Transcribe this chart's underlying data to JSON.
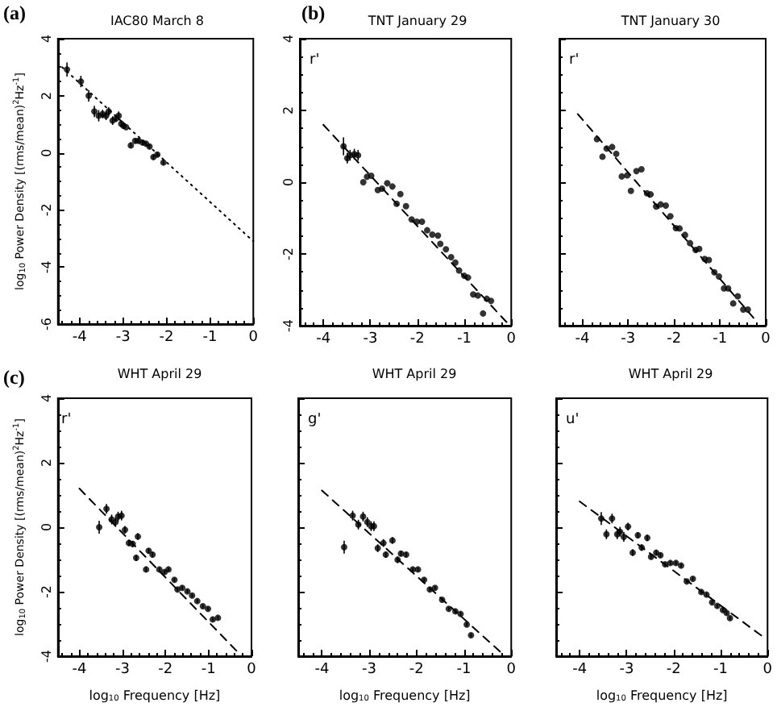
{
  "chart_data": [
    {
      "type": "scatter",
      "title": "IAC80 March 8",
      "ylabel": "log$_{10}$ Power Density [(rms/mean)$^{2}$Hz$^{-1}$]",
      "annotations": [
        "(a)"
      ],
      "xlim": [
        -4.5,
        0
      ],
      "xticks": [
        -4,
        -3,
        -2,
        -1,
        0
      ],
      "ylim": [
        -6,
        4
      ],
      "yticks": [
        -6,
        -4,
        -2,
        0,
        2,
        4
      ],
      "marker": "circle",
      "series": [
        {
          "type": "scatter",
          "color": "#000000",
          "x": [
            -4.29,
            -3.97,
            -3.79,
            -3.66,
            -3.56,
            -3.47,
            -3.39,
            -3.33,
            -3.24,
            -3.16,
            -3.1,
            -3.04,
            -2.99,
            -2.93,
            -2.82,
            -2.72,
            -2.64,
            -2.55,
            -2.47,
            -2.39,
            -2.3,
            -2.21,
            -2.07
          ],
          "values": [
            2.92,
            2.5,
            2.0,
            1.45,
            1.3,
            1.36,
            1.3,
            1.45,
            1.13,
            1.2,
            1.3,
            1.02,
            0.95,
            0.9,
            0.26,
            0.42,
            0.42,
            0.36,
            0.32,
            0.22,
            -0.15,
            -0.06,
            -0.34
          ],
          "errors": [
            0.25,
            0.2,
            0.2,
            0.2,
            0.2,
            0.15,
            0.15,
            0.15,
            0.15,
            0.12,
            0.15,
            0.12,
            0.1,
            null,
            0.1,
            0.08,
            0.08,
            0.08,
            0.08,
            0.08,
            0.08,
            0.08,
            0.08
          ]
        },
        {
          "type": "line",
          "color": "#000000",
          "marker": "none",
          "line_style": "dotted",
          "x": [
            -4.4,
            0
          ],
          "values": [
            3.0,
            -3.1
          ]
        }
      ]
    },
    {
      "type": "scatter",
      "title": "TNT January 29",
      "annotations": [
        "(b)",
        "r'"
      ],
      "xlim": [
        -4.5,
        0
      ],
      "xticks": [
        -4,
        -3,
        -2,
        -1,
        0
      ],
      "ylim": [
        -4,
        4
      ],
      "yticks": [
        -4,
        -2,
        0,
        2,
        4
      ],
      "marker": "circle",
      "series": [
        {
          "type": "scatter",
          "color": "#000000",
          "x": [
            -3.57,
            -3.49,
            -3.43,
            -3.34,
            -3.26,
            -3.15,
            -3.07,
            -2.98,
            -2.84,
            -2.75,
            -2.64,
            -2.53,
            -2.36,
            -2.44,
            -2.24,
            -2.12,
            -2.01,
            -1.9,
            -1.79,
            -1.68,
            -1.56,
            -1.51,
            -1.39,
            -1.28,
            -1.19,
            -1.11,
            -1.0,
            -0.92,
            -0.81,
            -0.71,
            -0.6,
            -0.52,
            -0.43
          ],
          "values": [
            1.0,
            0.67,
            0.75,
            0.78,
            0.75,
            0.0,
            0.15,
            0.18,
            -0.22,
            -0.18,
            -0.03,
            -0.12,
            -0.33,
            -0.6,
            -0.67,
            -1.04,
            -1.1,
            -1.1,
            -1.34,
            -1.46,
            -1.49,
            -1.72,
            -1.87,
            -2.09,
            -2.24,
            -2.46,
            -2.61,
            -2.66,
            -3.13,
            -3.16,
            -3.66,
            -3.25,
            -3.31
          ],
          "errors": [
            0.25,
            0.15,
            0.15,
            0.15,
            0.15,
            null,
            null,
            null,
            null,
            null,
            null,
            null,
            null,
            null,
            null,
            null,
            null,
            null,
            null,
            null,
            null,
            null,
            null,
            null,
            null,
            null,
            null,
            null,
            null,
            null,
            null,
            null,
            null
          ]
        },
        {
          "type": "line",
          "color": "#000000",
          "marker": "none",
          "line_style": "dashed",
          "x": [
            -4.0,
            -0.1
          ],
          "values": [
            1.6,
            -3.9
          ]
        }
      ]
    },
    {
      "type": "scatter",
      "title": "TNT January 30",
      "annotations": [
        "r'"
      ],
      "xlim": [
        -4.5,
        0
      ],
      "xticks": [
        -4,
        -3,
        -2,
        -1,
        0
      ],
      "ylim": [
        -4,
        4
      ],
      "yticks": [
        -4,
        -2,
        0,
        2,
        4
      ],
      "tick_labels": "x",
      "marker": "circle",
      "series": [
        {
          "type": "scatter",
          "color": "#000000",
          "x": [
            -3.68,
            -3.56,
            -3.47,
            -3.35,
            -3.26,
            -3.14,
            -3.02,
            -2.94,
            -2.82,
            -2.71,
            -2.59,
            -2.51,
            -2.39,
            -2.29,
            -2.18,
            -2.08,
            -1.96,
            -1.88,
            -1.76,
            -1.65,
            -1.53,
            -1.45,
            -1.33,
            -1.24,
            -1.12,
            -1.02,
            -0.91,
            -0.82,
            -0.71,
            -0.61,
            -0.49,
            -0.39
          ],
          "values": [
            1.2,
            0.71,
            0.94,
            0.98,
            0.79,
            0.16,
            0.19,
            -0.24,
            0.31,
            0.36,
            -0.31,
            -0.34,
            -0.68,
            -0.62,
            -0.65,
            -0.95,
            -1.28,
            -1.29,
            -1.47,
            -1.7,
            -1.89,
            -1.86,
            -2.14,
            -2.17,
            -2.51,
            -2.63,
            -2.96,
            -2.96,
            -3.38,
            -3.18,
            -3.55,
            -3.55
          ]
        },
        {
          "type": "line",
          "color": "#000000",
          "marker": "none",
          "line_style": "dashed",
          "x": [
            -4.1,
            -0.24
          ],
          "values": [
            1.9,
            -3.82
          ]
        }
      ]
    },
    {
      "type": "scatter",
      "title": "WHT April 29",
      "xlabel": "log$_{10}$ Frequency [Hz]",
      "ylabel": "log$_{10}$ Power Density [(rms/mean)$^{2}$Hz$^{-1}$]",
      "annotations": [
        "(c)",
        "r'"
      ],
      "xlim": [
        -4.5,
        0
      ],
      "xticks": [
        -4,
        -3,
        -2,
        -1,
        0
      ],
      "ylim": [
        -4,
        4
      ],
      "yticks": [
        -4,
        -2,
        0,
        2,
        4
      ],
      "marker": "circle",
      "series": [
        {
          "type": "scatter",
          "color": "#000000",
          "x": [
            -3.54,
            -3.37,
            -3.25,
            -3.16,
            -3.1,
            -3.02,
            -2.94,
            -2.85,
            -2.76,
            -2.64,
            -2.68,
            -2.45,
            -2.39,
            -2.3,
            -2.14,
            -2.02,
            -1.93,
            -1.79,
            -1.72,
            -1.61,
            -1.49,
            -1.38,
            -1.26,
            -1.13,
            -1.01,
            -0.9,
            -0.78
          ],
          "values": [
            0.0,
            0.57,
            0.24,
            0.16,
            0.33,
            0.36,
            -0.08,
            -0.49,
            -0.52,
            -0.29,
            -0.95,
            -1.31,
            -0.73,
            -0.85,
            -1.31,
            -1.39,
            -1.31,
            -1.63,
            -1.93,
            -1.88,
            -1.99,
            -2.12,
            -2.29,
            -2.45,
            -2.53,
            -2.86,
            -2.81
          ],
          "errors": [
            0.2,
            0.15,
            0.15,
            0.15,
            0.15,
            0.15,
            0.12,
            0.1,
            0.1,
            0.1,
            0.1,
            0.08,
            0.08,
            0.08,
            0.06,
            0.06,
            0.06,
            0.06,
            0.06,
            0.06,
            0.06,
            0.06,
            0.06,
            0.06,
            0.06,
            0.06,
            0.06
          ]
        },
        {
          "type": "line",
          "color": "#000000",
          "marker": "none",
          "line_style": "dashed",
          "x": [
            -4.0,
            -0.3
          ],
          "values": [
            1.2,
            -3.9
          ]
        }
      ]
    },
    {
      "type": "scatter",
      "title": "WHT April 29",
      "xlabel": "log$_{10}$ Frequency [Hz]",
      "annotations": [
        "g'"
      ],
      "xlim": [
        -4.5,
        0
      ],
      "xticks": [
        -4,
        -3,
        -2,
        -1,
        0
      ],
      "ylim": [
        -4,
        4
      ],
      "yticks": [
        -4,
        -2,
        0,
        2,
        4
      ],
      "tick_labels": "x",
      "marker": "circle",
      "series": [
        {
          "type": "scatter",
          "color": "#000000",
          "x": [
            -3.53,
            -3.35,
            -3.23,
            -3.13,
            -3.04,
            -2.96,
            -2.9,
            -2.82,
            -2.7,
            -2.65,
            -2.51,
            -2.4,
            -2.33,
            -2.22,
            -2.08,
            -1.97,
            -1.84,
            -1.72,
            -1.61,
            -1.46,
            -1.32,
            -1.18,
            -1.07,
            -0.94,
            -0.85
          ],
          "values": [
            -0.62,
            0.36,
            0.08,
            0.33,
            0.16,
            0.03,
            0.03,
            -0.65,
            -0.49,
            -0.85,
            -0.41,
            -1.01,
            -0.82,
            -0.85,
            -1.31,
            -1.31,
            -1.63,
            -1.93,
            -1.88,
            -2.25,
            -2.53,
            -2.61,
            -2.69,
            -3.02,
            -3.35
          ],
          "errors": [
            0.2,
            0.15,
            0.15,
            0.15,
            0.15,
            0.15,
            0.15,
            0.12,
            0.12,
            0.1,
            0.1,
            0.1,
            0.08,
            0.08,
            0.06,
            0.06,
            0.06,
            0.06,
            0.06,
            0.06,
            0.06,
            0.06,
            0.06,
            0.06,
            0.06
          ]
        },
        {
          "type": "line",
          "color": "#000000",
          "marker": "none",
          "line_style": "dashed",
          "x": [
            -4.0,
            -0.19
          ],
          "values": [
            1.14,
            -3.92
          ]
        }
      ]
    },
    {
      "type": "scatter",
      "title": "WHT April 29",
      "xlabel": "log$_{10}$ Frequency [Hz]",
      "annotations": [
        "u'"
      ],
      "xlim": [
        -4.5,
        0
      ],
      "xticks": [
        -4,
        -3,
        -2,
        -1,
        0
      ],
      "ylim": [
        -4,
        4
      ],
      "yticks": [
        -4,
        -2,
        0,
        2,
        4
      ],
      "tick_labels": "x",
      "marker": "circle",
      "series": [
        {
          "type": "scatter",
          "color": "#000000",
          "x": [
            -3.54,
            -3.43,
            -3.31,
            -3.2,
            -3.14,
            -3.06,
            -2.97,
            -2.87,
            -2.76,
            -2.68,
            -2.56,
            -2.48,
            -2.37,
            -2.28,
            -2.18,
            -2.07,
            -1.95,
            -1.84,
            -1.72,
            -1.59,
            -1.41,
            -1.3,
            -1.18,
            -1.07,
            -0.95,
            -0.87,
            -0.8
          ],
          "values": [
            0.27,
            -0.22,
            0.27,
            -0.22,
            -0.14,
            -0.3,
            0.02,
            -0.79,
            -0.25,
            -0.63,
            -0.33,
            -0.92,
            -0.79,
            -0.87,
            -1.15,
            -1.11,
            -1.11,
            -1.19,
            -1.68,
            -1.6,
            -2.01,
            -2.09,
            -2.33,
            -2.44,
            -2.57,
            -2.66,
            -2.82
          ],
          "errors": [
            0.2,
            0.15,
            0.15,
            0.15,
            0.15,
            0.15,
            0.12,
            0.1,
            0.1,
            0.1,
            0.1,
            0.08,
            0.08,
            0.08,
            0.06,
            0.06,
            0.06,
            0.06,
            0.06,
            0.06,
            0.06,
            0.06,
            0.06,
            0.06,
            0.06,
            0.06,
            0.06
          ]
        },
        {
          "type": "line",
          "color": "#000000",
          "marker": "none",
          "line_style": "dashed",
          "x": [
            -4.0,
            -0.03
          ],
          "values": [
            0.8,
            -3.47
          ]
        }
      ]
    }
  ]
}
